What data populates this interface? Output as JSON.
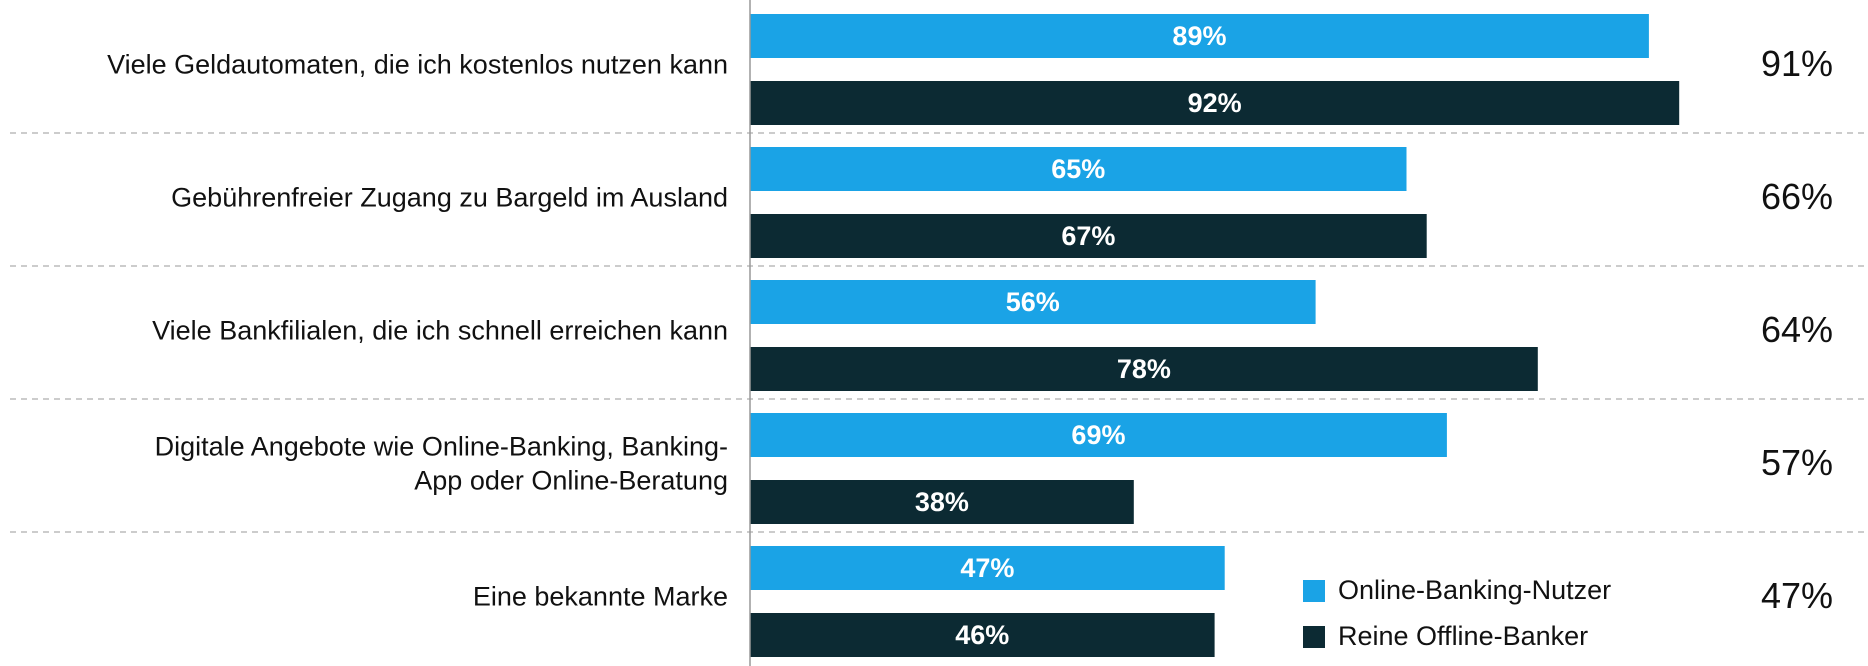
{
  "chart_data": {
    "type": "grouped-hbar",
    "categories": [
      [
        "Viele Geldautomaten, die ich kostenlos nutzen kann"
      ],
      [
        "Gebührenfreier Zugang zu Bargeld im Ausland"
      ],
      [
        "Viele Bankfilialen, die ich schnell erreichen kann"
      ],
      [
        "Digitale Angebote wie Online-Banking, Banking-",
        "App oder Online-Beratung"
      ],
      [
        "Eine bekannte Marke"
      ]
    ],
    "series": [
      {
        "name": "Online-Banking-Nutzer",
        "color": "#1aa3e6",
        "values": [
          89,
          65,
          56,
          69,
          47
        ],
        "value_labels": [
          "89%",
          "65%",
          "56%",
          "69%",
          "47%"
        ]
      },
      {
        "name": "Reine Offline-Banker",
        "color": "#0c2a33",
        "values": [
          92,
          67,
          78,
          38,
          46
        ],
        "value_labels": [
          "92%",
          "67%",
          "78%",
          "38%",
          "46%"
        ]
      }
    ],
    "totals": {
      "values": [
        91,
        66,
        64,
        57,
        47
      ],
      "value_labels": [
        "91%",
        "66%",
        "64%",
        "57%",
        "47%"
      ]
    },
    "xlim": [
      0,
      100
    ],
    "legend": "lower-right"
  }
}
